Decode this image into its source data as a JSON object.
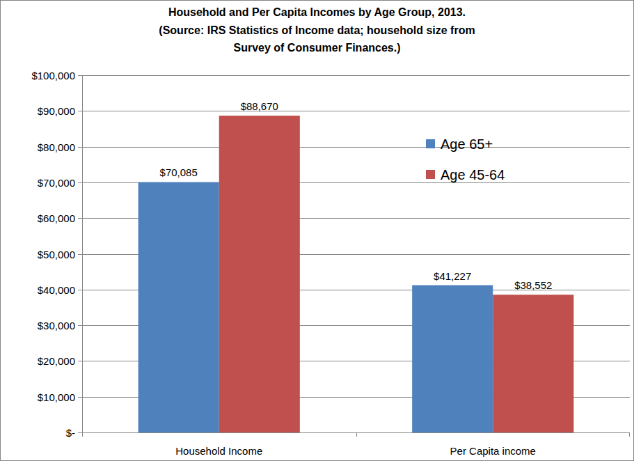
{
  "chart_data": {
    "type": "bar",
    "title": "Household and Per Capita Incomes by Age Group, 2013.",
    "subtitle": "(Source: IRS Statistics of Income data; household size from Survey of Consumer Finances.)",
    "categories": [
      "Household Income",
      "Per Capita income"
    ],
    "series": [
      {
        "name": "Age 65+",
        "color": "#4f81bd",
        "values": [
          70085,
          41227
        ],
        "value_labels": [
          "$70,085",
          "$41,227"
        ]
      },
      {
        "name": "Age 45-64",
        "color": "#c0504d",
        "values": [
          88670,
          38552
        ],
        "value_labels": [
          "$88,670",
          "$38,552"
        ]
      }
    ],
    "ylim": [
      0,
      100000
    ],
    "yticks": [
      {
        "value": 0,
        "label": "$-"
      },
      {
        "value": 10000,
        "label": "$10,000"
      },
      {
        "value": 20000,
        "label": "$20,000"
      },
      {
        "value": 30000,
        "label": "$30,000"
      },
      {
        "value": 40000,
        "label": "$40,000"
      },
      {
        "value": 50000,
        "label": "$50,000"
      },
      {
        "value": 60000,
        "label": "$60,000"
      },
      {
        "value": 70000,
        "label": "$70,000"
      },
      {
        "value": 80000,
        "label": "$80,000"
      },
      {
        "value": 90000,
        "label": "$90,000"
      },
      {
        "value": 100000,
        "label": "$100,000"
      }
    ],
    "grid": true,
    "legend": "right",
    "data_labels": true
  }
}
